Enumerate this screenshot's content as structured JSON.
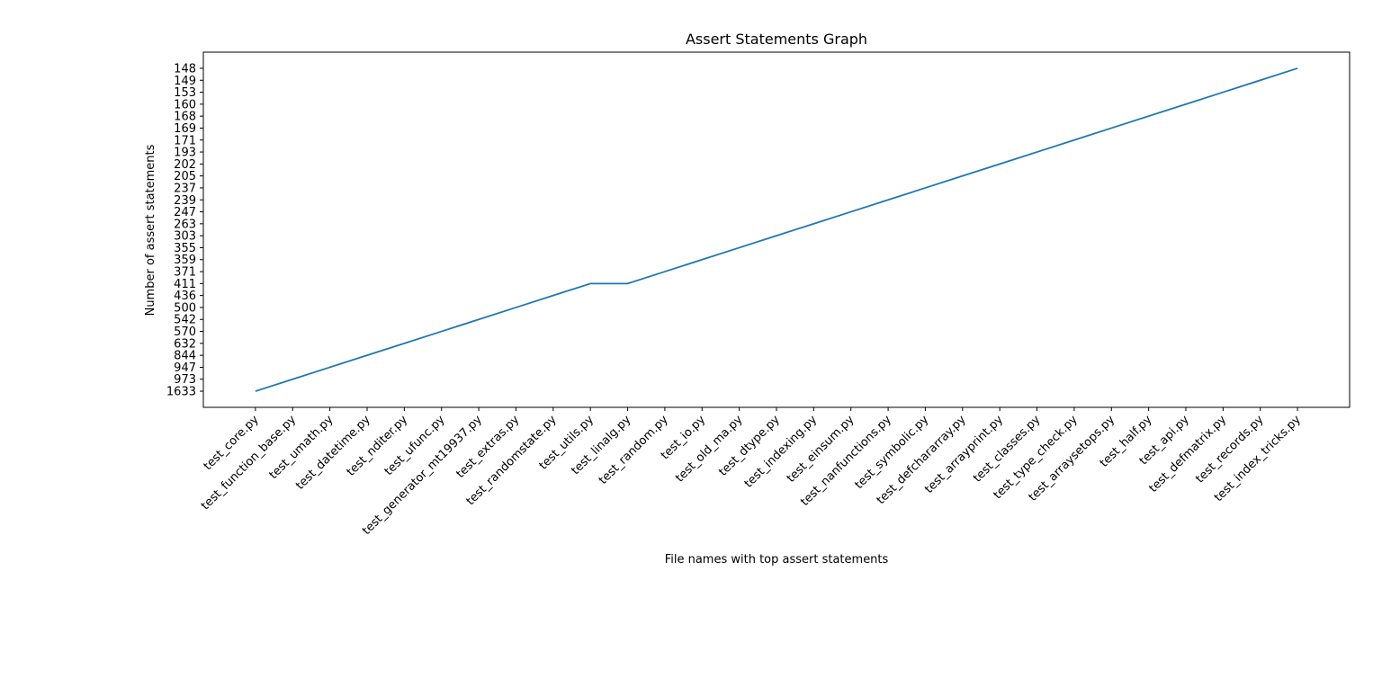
{
  "chart_data": {
    "type": "line",
    "title": "Assert Statements Graph",
    "x_label": "File names with top assert statements",
    "y_label": "Number of assert statements",
    "categories": [
      "test_core.py",
      "test_function_base.py",
      "test_umath.py",
      "test_datetime.py",
      "test_nditer.py",
      "test_ufunc.py",
      "test_generator_mt19937.py",
      "test_extras.py",
      "test_randomstate.py",
      "test_utils.py",
      "test_linalg.py",
      "test_random.py",
      "test_io.py",
      "test_old_ma.py",
      "test_dtype.py",
      "test_indexing.py",
      "test_einsum.py",
      "test_nanfunctions.py",
      "test_symbolic.py",
      "test_defchararray.py",
      "test_arrayprint.py",
      "test_classes.py",
      "test_type_check.py",
      "test_arraysetops.py",
      "test_half.py",
      "test_api.py",
      "test_defmatrix.py",
      "test_records.py",
      "test_index_tricks.py"
    ],
    "values": [
      1633,
      973,
      947,
      844,
      632,
      570,
      542,
      500,
      436,
      411,
      411,
      371,
      359,
      355,
      303,
      263,
      247,
      239,
      237,
      205,
      202,
      193,
      171,
      169,
      168,
      160,
      153,
      149,
      148
    ],
    "color": "#1f77b4",
    "y_scale": "categorical",
    "yticks": [
      1633,
      973,
      947,
      844,
      632,
      570,
      542,
      500,
      436,
      411,
      371,
      359,
      355,
      303,
      263,
      247,
      239,
      237,
      205,
      202,
      193,
      171,
      169,
      168,
      160,
      153,
      149,
      148
    ]
  }
}
